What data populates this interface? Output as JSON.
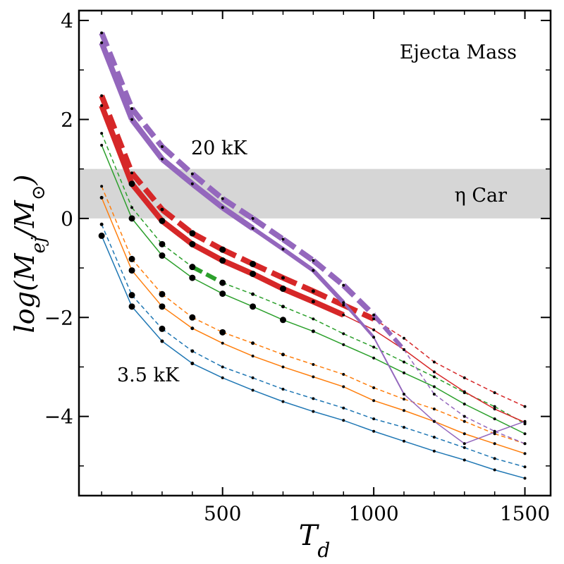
{
  "chart_data": {
    "type": "line",
    "xlabel": "T_d",
    "ylabel": "log(M_ej/M_⊙)",
    "xlim": [
      25,
      1585
    ],
    "ylim": [
      -5.6,
      4.2
    ],
    "x_ticks": [
      500,
      1000,
      1500
    ],
    "x_tick_labels": [
      "500",
      "1000",
      "1500"
    ],
    "y_ticks": [
      -4,
      -2,
      0,
      2,
      4
    ],
    "y_tick_labels": [
      "−4",
      "−2",
      "0",
      "2",
      "4"
    ],
    "band": {
      "y0": 0,
      "y1": 1,
      "color": "#d6d6d6",
      "label": "η Car"
    },
    "annotations": {
      "title": "Ejecta Mass",
      "hot": "20 kK",
      "cool": "3.5 kK",
      "band": "η Car"
    },
    "colors": {
      "blue": "#1f77b4",
      "orange": "#ff7f0e",
      "green": "#2ca02c",
      "red": "#d62728",
      "purple": "#9467bd"
    },
    "series": [
      {
        "name": "3.5 kK solid",
        "color": "#1f77b4",
        "dash": false,
        "x": [
          100,
          200,
          300,
          400,
          500,
          600,
          700,
          800,
          900,
          1000,
          1100,
          1200,
          1300,
          1400,
          1500
        ],
        "y": [
          -0.35,
          -1.78,
          -2.48,
          -2.93,
          -3.22,
          -3.47,
          -3.7,
          -3.9,
          -4.08,
          -4.3,
          -4.5,
          -4.7,
          -4.88,
          -5.08,
          -5.25
        ],
        "w": [
          1.5,
          1.5,
          1.5,
          1.5,
          1.5,
          1.5,
          1.5,
          1.5,
          1.5,
          1.5,
          1.5,
          1.5,
          1.5,
          1.5
        ],
        "m": [
          9,
          9,
          5,
          5,
          4,
          4,
          4,
          4,
          4,
          4,
          4,
          4,
          4,
          4,
          4
        ]
      },
      {
        "name": "3.5 kK dashed",
        "color": "#1f77b4",
        "dash": true,
        "x": [
          100,
          200,
          300,
          400,
          500,
          600,
          700,
          800,
          900,
          1000,
          1100,
          1200,
          1300,
          1400,
          1500
        ],
        "y": [
          -0.12,
          -1.55,
          -2.23,
          -2.68,
          -3.0,
          -3.22,
          -3.45,
          -3.64,
          -3.83,
          -4.05,
          -4.22,
          -4.42,
          -4.63,
          -4.85,
          -5.02
        ],
        "w": [
          1.5,
          1.5,
          1.5,
          1.5,
          1.5,
          1.5,
          1.5,
          1.5,
          1.5,
          1.5,
          1.5,
          1.5,
          1.5,
          1.5
        ],
        "m": [
          5,
          9,
          9,
          5,
          4,
          4,
          4,
          4,
          4,
          4,
          4,
          4,
          4,
          4,
          4
        ]
      },
      {
        "name": "orange solid",
        "color": "#ff7f0e",
        "dash": false,
        "x": [
          100,
          200,
          300,
          400,
          500,
          600,
          700,
          800,
          900,
          1000,
          1100,
          1200,
          1300,
          1400,
          1500
        ],
        "y": [
          0.42,
          -1.05,
          -1.78,
          -2.22,
          -2.52,
          -2.78,
          -3.0,
          -3.2,
          -3.4,
          -3.68,
          -3.88,
          -4.1,
          -4.35,
          -4.55,
          -4.75
        ],
        "w": [
          1.5,
          1.5,
          1.5,
          1.5,
          1.5,
          1.5,
          1.5,
          1.5,
          1.5,
          1.5,
          1.5,
          1.5,
          1.5,
          1.5
        ],
        "m": [
          5,
          9,
          9,
          5,
          4,
          4,
          4,
          4,
          4,
          4,
          4,
          4,
          4,
          4,
          4
        ]
      },
      {
        "name": "orange dashed",
        "color": "#ff7f0e",
        "dash": true,
        "x": [
          100,
          200,
          300,
          400,
          500,
          600,
          700,
          800,
          900,
          1000,
          1100,
          1200,
          1300,
          1400,
          1500
        ],
        "y": [
          0.65,
          -0.82,
          -1.53,
          -2.0,
          -2.3,
          -2.52,
          -2.75,
          -2.95,
          -3.15,
          -3.42,
          -3.65,
          -3.85,
          -4.1,
          -4.35,
          -4.55
        ],
        "w": [
          1.5,
          1.5,
          1.5,
          1.5,
          1.5,
          1.5,
          1.5,
          1.5,
          1.5,
          1.5,
          1.5,
          1.5,
          1.5,
          1.5
        ],
        "m": [
          4,
          9,
          9,
          9,
          9,
          5,
          5,
          4,
          4,
          4,
          4,
          4,
          4,
          4,
          4
        ]
      },
      {
        "name": "green solid",
        "color": "#2ca02c",
        "dash": false,
        "x": [
          100,
          200,
          300,
          400,
          500,
          600,
          700,
          800,
          900,
          1000,
          1100,
          1200,
          1300,
          1400,
          1500
        ],
        "y": [
          1.48,
          0.0,
          -0.75,
          -1.2,
          -1.52,
          -1.78,
          -2.05,
          -2.28,
          -2.55,
          -2.82,
          -3.12,
          -3.4,
          -3.75,
          -4.05,
          -4.35
        ],
        "w": [
          1.5,
          1.5,
          1.5,
          1.5,
          1.5,
          1.5,
          1.5,
          1.5,
          1.5,
          1.5,
          1.5,
          1.5,
          1.5,
          1.5
        ],
        "m": [
          4,
          9,
          9,
          9,
          9,
          9,
          9,
          5,
          4,
          4,
          4,
          4,
          4,
          4,
          4
        ]
      },
      {
        "name": "green dashed",
        "color": "#2ca02c",
        "dash": true,
        "x": [
          100,
          200,
          300,
          400,
          500,
          600,
          700,
          800,
          900,
          1000,
          1100,
          1200,
          1300,
          1400,
          1500
        ],
        "y": [
          1.72,
          0.22,
          -0.52,
          -0.98,
          -1.3,
          -1.53,
          -1.78,
          -2.03,
          -2.33,
          -2.6,
          -2.9,
          -3.2,
          -3.52,
          -3.8,
          -4.15
        ],
        "w": [
          1.5,
          1.5,
          1.5,
          6,
          1.5,
          1.5,
          1.5,
          1.5,
          1.5,
          1.5,
          1.5,
          1.5,
          1.5,
          1.5
        ],
        "m": [
          4,
          4,
          9,
          9,
          9,
          5,
          5,
          4,
          4,
          4,
          4,
          4,
          4,
          4,
          4
        ]
      },
      {
        "name": "red solid",
        "color": "#d62728",
        "dash": false,
        "x": [
          100,
          200,
          300,
          400,
          500,
          600,
          700,
          800,
          900,
          1000,
          1100,
          1200,
          1300,
          1400,
          1500
        ],
        "y": [
          2.28,
          0.7,
          -0.05,
          -0.52,
          -0.85,
          -1.12,
          -1.42,
          -1.68,
          -1.95,
          -2.25,
          -2.65,
          -3.1,
          -3.5,
          -3.85,
          -4.12
        ],
        "w": [
          8,
          8,
          8,
          8,
          8,
          8,
          8,
          8,
          1.5,
          1.5,
          1.5,
          1.5,
          1.5,
          1.5
        ],
        "m": [
          4,
          9,
          9,
          9,
          9,
          9,
          9,
          5,
          4,
          4,
          4,
          4,
          4,
          4,
          4
        ]
      },
      {
        "name": "red dashed",
        "color": "#d62728",
        "dash": true,
        "x": [
          100,
          200,
          300,
          400,
          500,
          600,
          700,
          800,
          900,
          1000,
          1100,
          1200,
          1300,
          1400,
          1500
        ],
        "y": [
          2.48,
          0.92,
          0.18,
          -0.3,
          -0.63,
          -0.92,
          -1.2,
          -1.47,
          -1.75,
          -2.03,
          -2.42,
          -2.9,
          -3.22,
          -3.52,
          -3.8
        ],
        "w": [
          8,
          8,
          8,
          8,
          8,
          8,
          8,
          8,
          8,
          1.5,
          1.5,
          1.5,
          1.5,
          1.5
        ],
        "m": [
          4,
          4,
          5,
          9,
          9,
          9,
          5,
          5,
          4,
          4,
          4,
          4,
          4,
          4,
          4
        ]
      },
      {
        "name": "20 kK solid",
        "color": "#9467bd",
        "dash": false,
        "x": [
          100,
          200,
          300,
          400,
          500,
          600,
          700,
          800,
          900,
          1000,
          1100,
          1200,
          1300,
          1400,
          1500
        ],
        "y": [
          3.55,
          2.0,
          1.2,
          0.7,
          0.22,
          -0.2,
          -0.62,
          -1.05,
          -1.7,
          -2.4,
          -3.55,
          -4.1,
          -4.55,
          -4.32,
          -4.1
        ],
        "w": [
          8,
          8,
          8,
          8,
          8,
          6,
          6,
          6,
          4,
          2,
          1.5,
          1.5,
          1.5,
          1.5
        ],
        "m": [
          4,
          4,
          4,
          4,
          4,
          4,
          4,
          4,
          4,
          4,
          4,
          4,
          4,
          4,
          4
        ]
      },
      {
        "name": "20 kK dashed",
        "color": "#9467bd",
        "dash": true,
        "x": [
          100,
          200,
          300,
          400,
          500,
          600,
          700,
          800,
          900,
          1000,
          1100,
          1200,
          1300,
          1400,
          1500
        ],
        "y": [
          3.75,
          2.22,
          1.45,
          0.9,
          0.4,
          0.0,
          -0.42,
          -0.85,
          -1.35,
          -1.95,
          -2.65,
          -3.55,
          -4.0,
          -4.3,
          -4.55
        ],
        "w": [
          8,
          8,
          8,
          8,
          8,
          8,
          8,
          8,
          8,
          6,
          1.5,
          1.5,
          1.5,
          1.5
        ],
        "m": [
          4,
          4,
          4,
          4,
          4,
          4,
          4,
          4,
          4,
          4,
          4,
          4,
          4,
          4,
          4
        ]
      }
    ]
  }
}
